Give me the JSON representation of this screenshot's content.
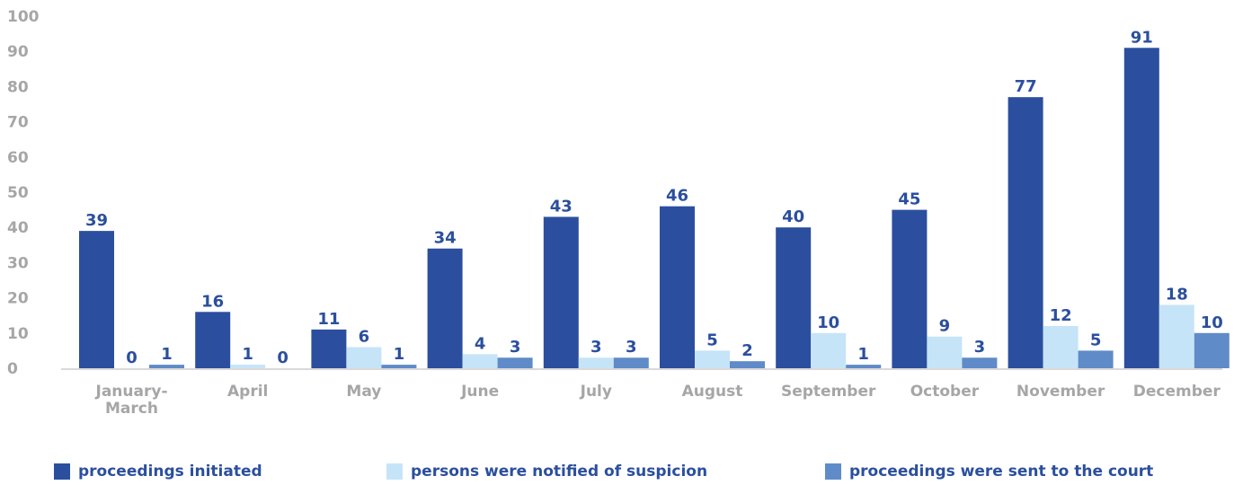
{
  "chart_data": {
    "type": "bar",
    "categories": [
      [
        "January-",
        "March"
      ],
      [
        "April"
      ],
      [
        "May"
      ],
      [
        "June"
      ],
      [
        "July"
      ],
      [
        "August"
      ],
      [
        "September"
      ],
      [
        "October"
      ],
      [
        "November"
      ],
      [
        "December"
      ]
    ],
    "series": [
      {
        "name": "proceedings initiated",
        "color": "#2b4f9e",
        "values": [
          39,
          16,
          11,
          34,
          43,
          46,
          40,
          45,
          77,
          91
        ]
      },
      {
        "name": "persons were notified of suspicion",
        "color": "#c6e4f8",
        "values": [
          0,
          1,
          6,
          4,
          3,
          5,
          10,
          9,
          12,
          18
        ]
      },
      {
        "name": "proceedings were sent to the court",
        "color": "#5f8bc8",
        "values": [
          1,
          0,
          1,
          3,
          3,
          2,
          1,
          3,
          5,
          10
        ]
      }
    ],
    "yticks": [
      0,
      10,
      20,
      30,
      40,
      50,
      60,
      70,
      80,
      90,
      100
    ],
    "ylim": [
      0,
      100
    ],
    "grid": false,
    "legend": "bottom"
  }
}
